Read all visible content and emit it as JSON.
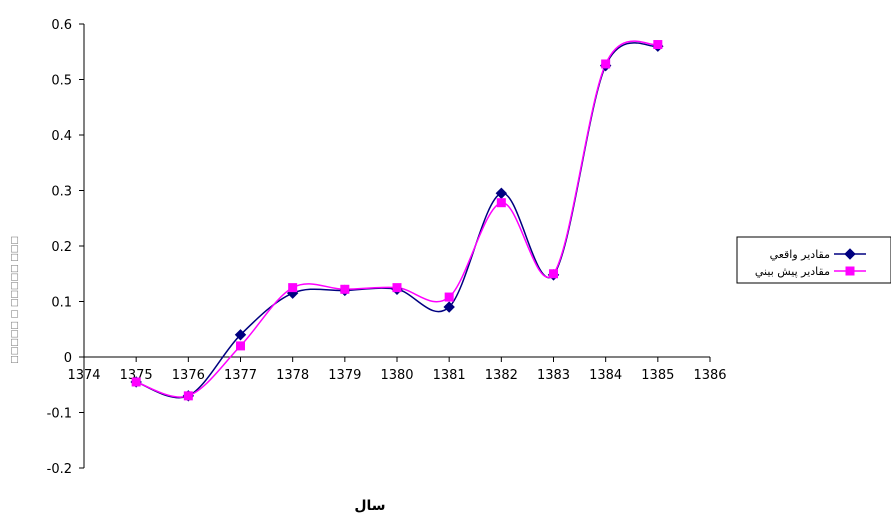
{
  "chart_data": {
    "type": "line",
    "title": "",
    "xlabel": "سال",
    "ylabel": "□□□□□ □ □□□□□ □□□",
    "xlim": [
      1374,
      1386
    ],
    "ylim": [
      -0.2,
      0.6
    ],
    "x_ticks": [
      "1374",
      "1375",
      "1376",
      "1377",
      "1378",
      "1379",
      "1380",
      "1381",
      "1382",
      "1383",
      "1384",
      "1385",
      "1386"
    ],
    "y_ticks": [
      "-0.2",
      "-0.1",
      "0",
      "0.1",
      "0.2",
      "0.3",
      "0.4",
      "0.5",
      "0.6"
    ],
    "x": [
      1375,
      1376,
      1377,
      1378,
      1379,
      1380,
      1381,
      1382,
      1383,
      1384,
      1385
    ],
    "series": [
      {
        "name": "مقادير واقعي",
        "color": "#000080",
        "marker": "diamond",
        "values": [
          -0.045,
          -0.07,
          0.04,
          0.115,
          0.12,
          0.122,
          0.09,
          0.295,
          0.148,
          0.525,
          0.56
        ]
      },
      {
        "name": "مقادير پيش بيني",
        "color": "#ff00ff",
        "marker": "square",
        "values": [
          -0.045,
          -0.07,
          0.02,
          0.125,
          0.122,
          0.125,
          0.108,
          0.278,
          0.15,
          0.528,
          0.563
        ]
      }
    ],
    "grid": false,
    "legend": "right",
    "smooth": true
  }
}
